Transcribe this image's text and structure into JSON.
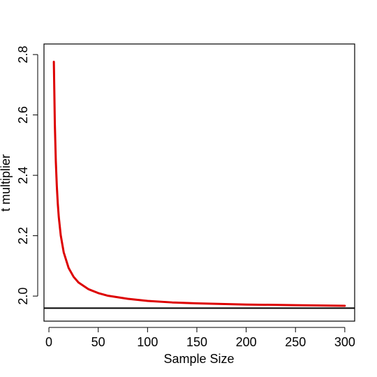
{
  "chart_data": {
    "type": "line",
    "title": "",
    "xlabel": "Sample Size",
    "ylabel": "t multiplier",
    "xlim": [
      -5,
      310
    ],
    "ylim": [
      1.917,
      2.835
    ],
    "x_ticks": [
      0,
      50,
      100,
      150,
      200,
      250,
      300
    ],
    "y_ticks": [
      2.0,
      2.2,
      2.4,
      2.6,
      2.8
    ],
    "x_tick_labels": [
      "0",
      "50",
      "100",
      "150",
      "200",
      "250",
      "300"
    ],
    "y_tick_labels": [
      "2.0",
      "2.2",
      "2.4",
      "2.6",
      "2.8"
    ],
    "grid": false,
    "legend": "none",
    "series": [
      {
        "color": "#dd0000",
        "x": [
          5,
          6,
          7,
          8,
          9,
          10,
          12,
          15,
          20,
          25,
          30,
          40,
          50,
          60,
          80,
          100,
          125,
          150,
          200,
          250,
          300
        ],
        "y": [
          2.776,
          2.571,
          2.447,
          2.365,
          2.306,
          2.262,
          2.201,
          2.145,
          2.093,
          2.064,
          2.045,
          2.023,
          2.01,
          2.001,
          1.991,
          1.984,
          1.979,
          1.976,
          1.972,
          1.97,
          1.968
        ]
      }
    ],
    "reference_line": {
      "y": 1.96,
      "color": "#000000"
    }
  }
}
